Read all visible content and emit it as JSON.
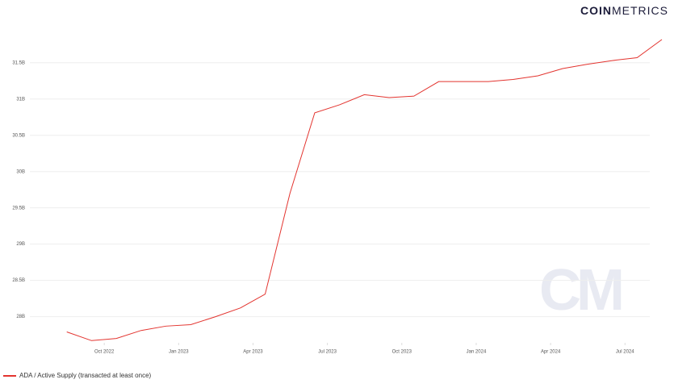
{
  "brand": {
    "bold": "COIN",
    "light": "METRICS"
  },
  "watermark": "CM",
  "chart_data": {
    "type": "line",
    "x": [
      "2022-08",
      "2022-09",
      "2022-10",
      "2022-11",
      "2022-12",
      "2023-01",
      "2023-02",
      "2023-03",
      "2023-04",
      "2023-05",
      "2023-06",
      "2023-07",
      "2023-08",
      "2023-09",
      "2023-10",
      "2023-11",
      "2023-12",
      "2024-01",
      "2024-02",
      "2024-03",
      "2024-04",
      "2024-05",
      "2024-06",
      "2024-07",
      "2024-08"
    ],
    "series": [
      {
        "name": "ADA / Active Supply (transacted at least once)",
        "color": "#e3342f",
        "values": [
          27.79,
          27.67,
          27.7,
          27.81,
          27.87,
          27.89,
          28.0,
          28.12,
          28.31,
          29.7,
          30.81,
          30.92,
          31.06,
          31.02,
          31.04,
          31.24,
          31.24,
          31.24,
          31.27,
          31.32,
          31.42,
          31.48,
          31.53,
          31.57,
          31.82
        ]
      }
    ],
    "xlim": [
      "2022-07",
      "2024-08"
    ],
    "xticks": [
      {
        "value": "2022-10",
        "label": "Oct 2022"
      },
      {
        "value": "2023-01",
        "label": "Jan 2023"
      },
      {
        "value": "2023-04",
        "label": "Apr 2023"
      },
      {
        "value": "2023-07",
        "label": "Jul 2023"
      },
      {
        "value": "2023-10",
        "label": "Oct 2023"
      },
      {
        "value": "2024-01",
        "label": "Jan 2024"
      },
      {
        "value": "2024-04",
        "label": "Apr 2024"
      },
      {
        "value": "2024-07",
        "label": "Jul 2024"
      }
    ],
    "ylim": [
      27.64,
      31.92
    ],
    "yticks": [
      {
        "value": 28,
        "label": "28B"
      },
      {
        "value": 28.5,
        "label": "28.5B"
      },
      {
        "value": 29,
        "label": "29B"
      },
      {
        "value": 29.5,
        "label": "29.5B"
      },
      {
        "value": 30,
        "label": "30B"
      },
      {
        "value": 30.5,
        "label": "30.5B"
      },
      {
        "value": 31,
        "label": "31B"
      },
      {
        "value": 31.5,
        "label": "31.5B"
      }
    ],
    "grid": true
  }
}
